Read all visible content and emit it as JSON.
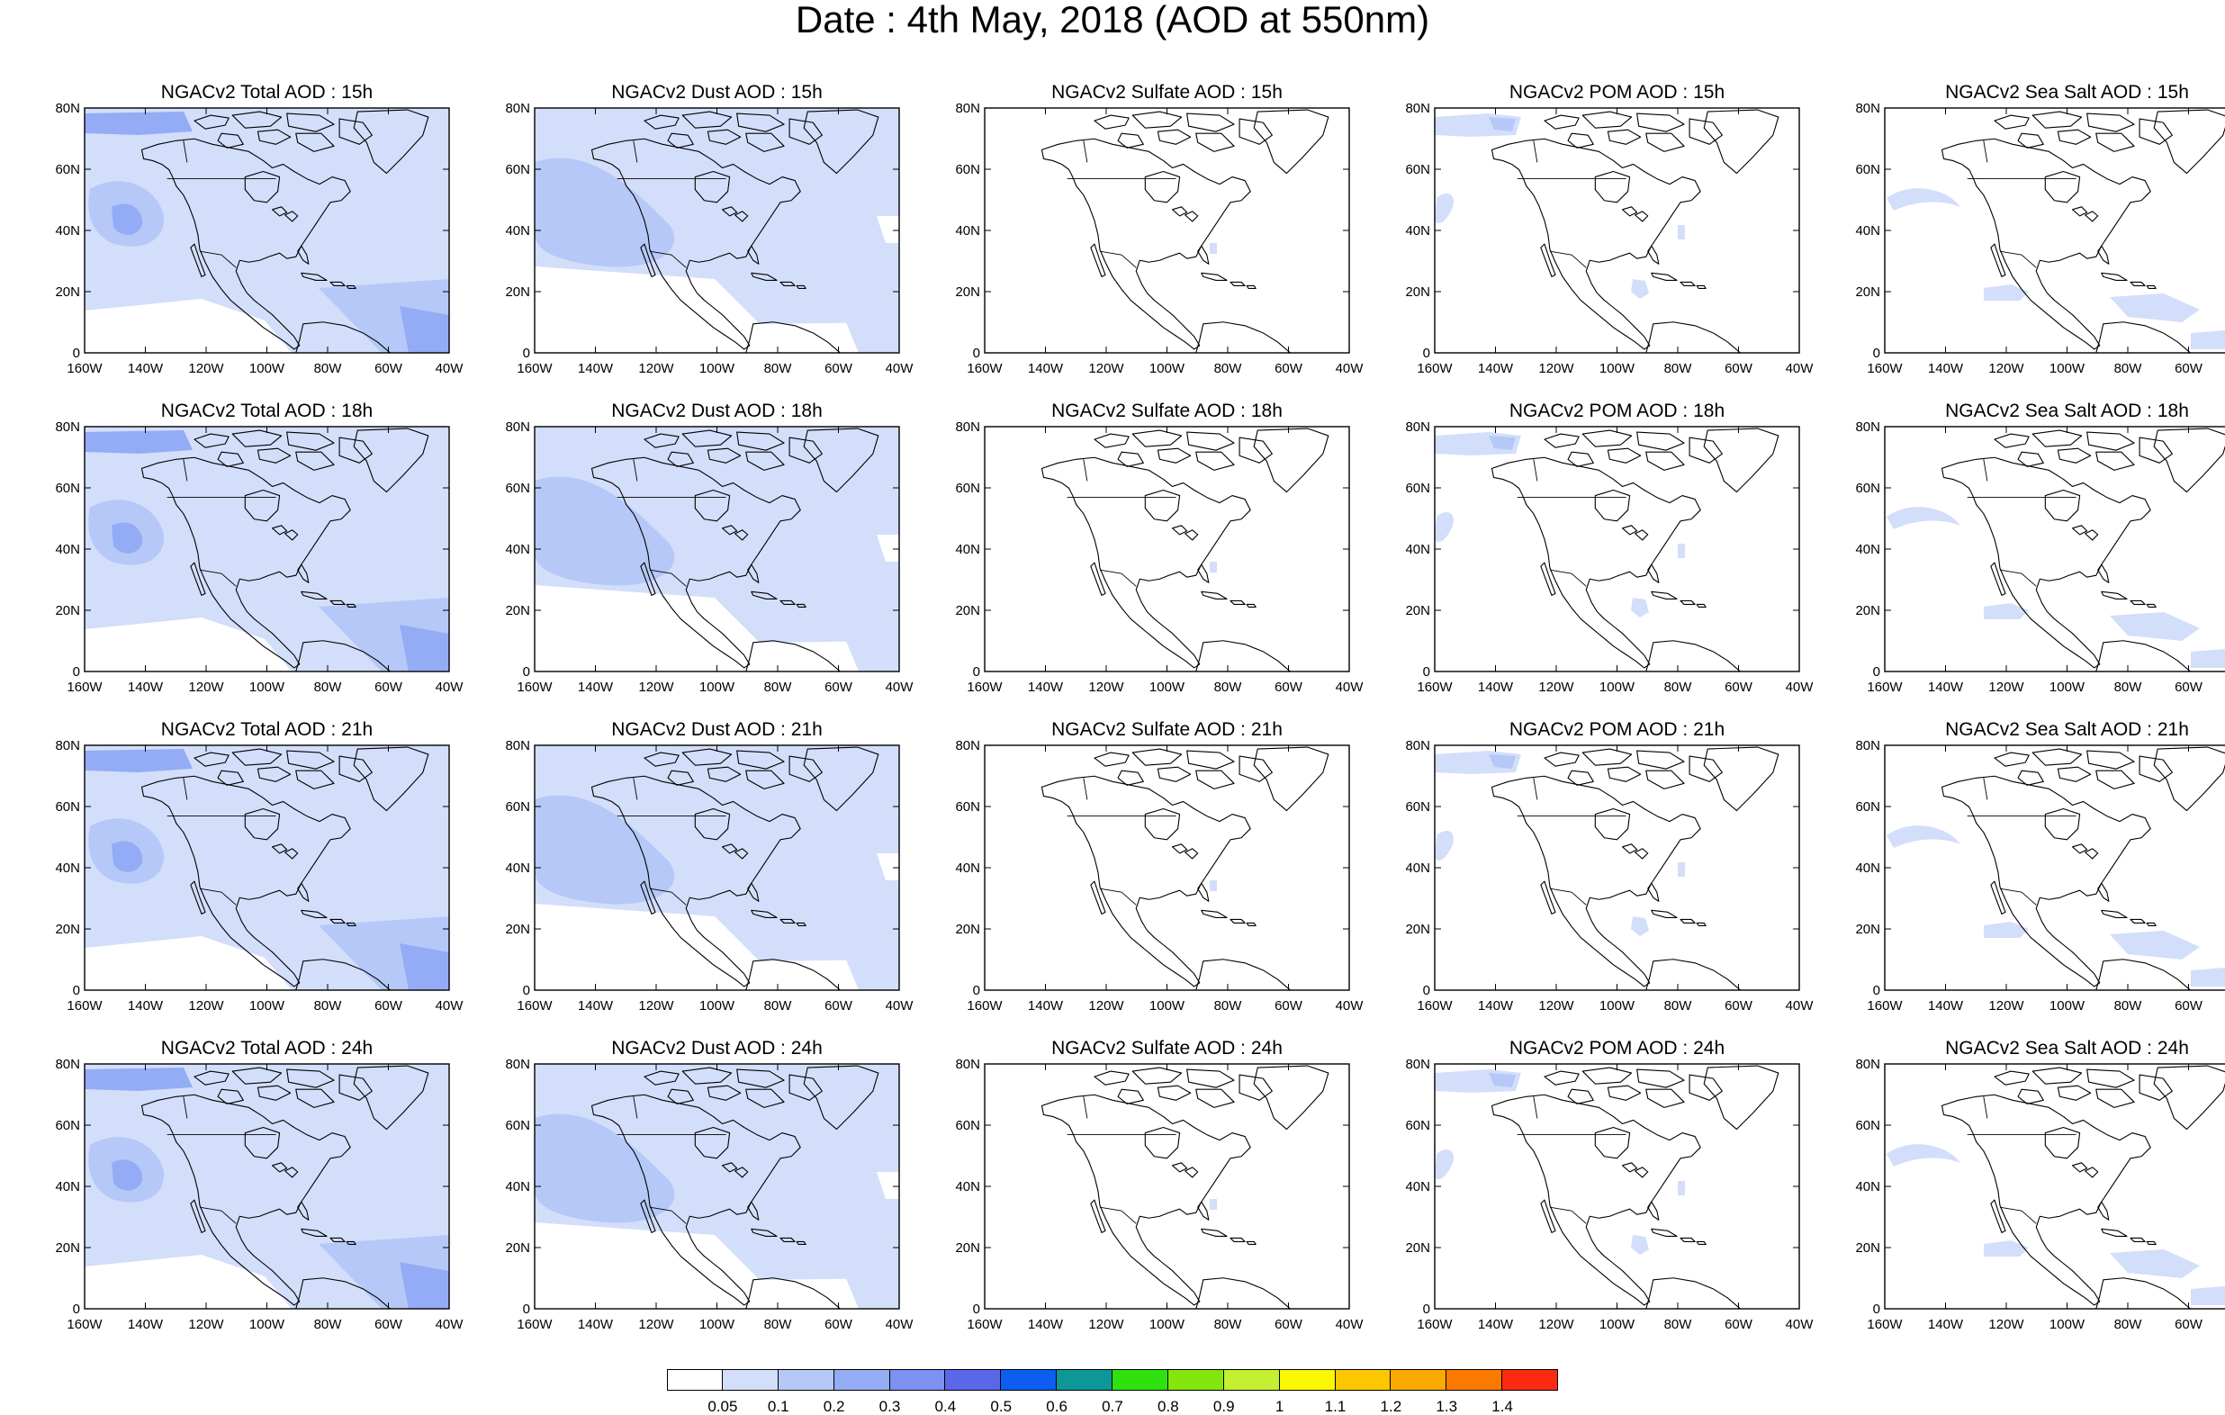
{
  "title": "Date : 4th May, 2018 (AOD at 550nm)",
  "lon_ticks": [
    "160W",
    "140W",
    "120W",
    "100W",
    "80W",
    "60W",
    "40W"
  ],
  "lat_ticks": [
    "0",
    "20N",
    "40N",
    "60N",
    "80N"
  ],
  "map_extent": {
    "lon": [
      -160,
      -40
    ],
    "lat": [
      0,
      80
    ]
  },
  "colors": {
    "land_outline": "#000000",
    "panel_border": "#000000",
    "background": "#ffffff"
  },
  "panels": [
    [
      {
        "title": "NGACv2 Total AOD : 15h",
        "species": "total",
        "hour": "15h"
      },
      {
        "title": "NGACv2 Dust AOD : 15h",
        "species": "dust",
        "hour": "15h"
      },
      {
        "title": "NGACv2 Sulfate AOD : 15h",
        "species": "sulfate",
        "hour": "15h"
      },
      {
        "title": "NGACv2 POM AOD : 15h",
        "species": "pom",
        "hour": "15h"
      },
      {
        "title": "NGACv2 Sea Salt AOD : 15h",
        "species": "seasalt",
        "hour": "15h"
      }
    ],
    [
      {
        "title": "NGACv2 Total AOD : 18h",
        "species": "total",
        "hour": "18h"
      },
      {
        "title": "NGACv2 Dust AOD : 18h",
        "species": "dust",
        "hour": "18h"
      },
      {
        "title": "NGACv2 Sulfate AOD : 18h",
        "species": "sulfate",
        "hour": "18h"
      },
      {
        "title": "NGACv2 POM AOD : 18h",
        "species": "pom",
        "hour": "18h"
      },
      {
        "title": "NGACv2 Sea Salt AOD : 18h",
        "species": "seasalt",
        "hour": "18h"
      }
    ],
    [
      {
        "title": "NGACv2 Total AOD : 21h",
        "species": "total",
        "hour": "21h"
      },
      {
        "title": "NGACv2 Dust AOD : 21h",
        "species": "dust",
        "hour": "21h"
      },
      {
        "title": "NGACv2 Sulfate AOD : 21h",
        "species": "sulfate",
        "hour": "21h"
      },
      {
        "title": "NGACv2 POM AOD : 21h",
        "species": "pom",
        "hour": "21h"
      },
      {
        "title": "NGACv2 Sea Salt AOD : 21h",
        "species": "seasalt",
        "hour": "21h"
      }
    ],
    [
      {
        "title": "NGACv2 Total AOD : 24h",
        "species": "total",
        "hour": "24h"
      },
      {
        "title": "NGACv2 Dust AOD : 24h",
        "species": "dust",
        "hour": "24h"
      },
      {
        "title": "NGACv2 Sulfate AOD : 24h",
        "species": "sulfate",
        "hour": "24h"
      },
      {
        "title": "NGACv2 POM AOD : 24h",
        "species": "pom",
        "hour": "24h"
      },
      {
        "title": "NGACv2 Sea Salt  AOD : 24h",
        "species": "seasalt",
        "hour": "24h"
      }
    ]
  ],
  "colorbar": {
    "colors": [
      "#ffffff",
      "#d3defb",
      "#b5c8f7",
      "#94acf5",
      "#7c91f1",
      "#5a67e8",
      "#0b5ef0",
      "#0e9797",
      "#2fe20f",
      "#83e60c",
      "#c4f032",
      "#faf700",
      "#fdc700",
      "#fcaa00",
      "#fb7a00",
      "#fb2a10"
    ],
    "labels": [
      "0.05",
      "0.1",
      "0.2",
      "0.3",
      "0.4",
      "0.5",
      "0.6",
      "0.7",
      "0.8",
      "0.9",
      "1",
      "1.1",
      "1.2",
      "1.3",
      "1.4"
    ]
  }
}
